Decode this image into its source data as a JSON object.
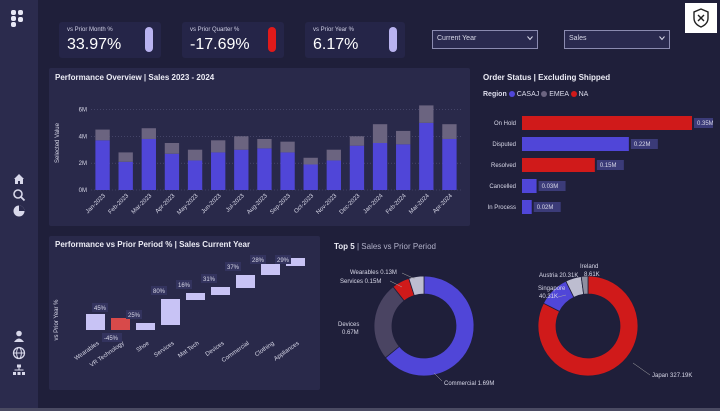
{
  "kpis": [
    {
      "label": "vs Prior Month %",
      "value": "33.97%",
      "bar_color": "#b9b3f0"
    },
    {
      "label": "vs Prior Quarter %",
      "value": "-17.69%",
      "bar_color": "#e01a1a"
    },
    {
      "label": "vs Prior Year %",
      "value": "6.17%",
      "bar_color": "#b9b3f0"
    }
  ],
  "filters": {
    "period": "Current Year",
    "measure": "Sales"
  },
  "icons": {
    "logo": "app-logo-icon",
    "home": "home-icon",
    "search": "search-icon",
    "pie": "pie-chart-icon",
    "user": "user-icon",
    "globe": "globe-icon",
    "hierarchy": "hierarchy-icon",
    "close": "close-shield-icon"
  },
  "colors": {
    "casaj": "#5046d8",
    "emea": "#6b6480",
    "na": "#d01a1a",
    "light": "#c8c3f5"
  },
  "performance_overview": {
    "title": "Performance Overview | Sales 2023 - 2024",
    "ylabel": "Selected Value",
    "yticks": [
      "6M",
      "4M",
      "2M",
      "0M"
    ],
    "chart_data": {
      "type": "bar",
      "stacked": true,
      "categories": [
        "Jan-2023",
        "Feb-2023",
        "Mar-2023",
        "Apr-2023",
        "May-2023",
        "Jun-2023",
        "Jul-2023",
        "Aug-2023",
        "Sep-2023",
        "Oct-2023",
        "Nov-2023",
        "Dec-2023",
        "Jan-2024",
        "Feb-2024",
        "Mar-2024",
        "Apr-2024"
      ],
      "series": [
        {
          "values": [
            3.7,
            2.1,
            3.8,
            2.7,
            2.2,
            2.8,
            3.0,
            3.1,
            2.8,
            1.9,
            2.2,
            3.3,
            3.5,
            3.4,
            5.0,
            3.8
          ]
        },
        {
          "values": [
            0.8,
            0.7,
            0.8,
            0.8,
            0.8,
            0.9,
            1.0,
            0.7,
            0.8,
            0.5,
            0.8,
            0.7,
            1.4,
            1.0,
            1.3,
            1.1
          ]
        }
      ],
      "ylim": [
        0,
        7
      ]
    }
  },
  "order_status": {
    "title": "Order Status | Excluding Shipped",
    "legend_title": "Region",
    "legend": [
      "CASAJ",
      "EMEA",
      "NA"
    ],
    "chart_data": {
      "type": "bar",
      "orientation": "horizontal",
      "categories": [
        "On Hold",
        "Disputed",
        "Resolved",
        "Cancelled",
        "In Process"
      ],
      "values": [
        0.35,
        0.22,
        0.15,
        0.03,
        0.02
      ],
      "labels": [
        "0.35M",
        "0.22M",
        "0.15M",
        "0.03M",
        "0.02M"
      ],
      "colors": [
        "#d01a1a",
        "#5046d8",
        "#d01a1a",
        "#5046d8",
        "#5046d8"
      ]
    }
  },
  "waterfall": {
    "title": "Performance vs Prior Period % | Sales Current Year",
    "ylabel": "vs Prior Year %",
    "chart_data": {
      "type": "bar",
      "categories": [
        "Wearables",
        "VR Technology",
        "Shoe",
        "Services",
        "Mat Tech",
        "Devices",
        "Commercial",
        "Clothing",
        "Appliances"
      ],
      "labels": [
        "45%",
        "-45%",
        "25%",
        "80%",
        "16%",
        "31%",
        "37%",
        "28%",
        "29%"
      ]
    }
  },
  "top5": {
    "title": "Top 5",
    "subtitle": "| Sales vs Prior Period",
    "donut1": {
      "chart_data": {
        "type": "pie",
        "categories": [
          "Commercial",
          "Devices",
          "Services",
          "Wearables"
        ],
        "values": [
          1.69,
          0.67,
          0.15,
          0.13
        ],
        "labels": [
          "Commercial 1.69M",
          "Devices\n0.67M",
          "Services 0.15M",
          "Wearables 0.13M"
        ],
        "colors": [
          "#5046d8",
          "#4a4462",
          "#d01a1a",
          "#bdbdd0"
        ]
      }
    },
    "donut2": {
      "chart_data": {
        "type": "pie",
        "categories": [
          "Japan",
          "Singapore",
          "Austria",
          "Ireland"
        ],
        "values": [
          327.19,
          40.31,
          20.31,
          8.61
        ],
        "labels": [
          "Japan 327.19K",
          "Singapore 40.31K",
          "Austria 20.31K",
          "Ireland 8.61K"
        ],
        "colors": [
          "#d01a1a",
          "#5046d8",
          "#bdbdd0",
          "#8e8ea0"
        ]
      }
    }
  }
}
